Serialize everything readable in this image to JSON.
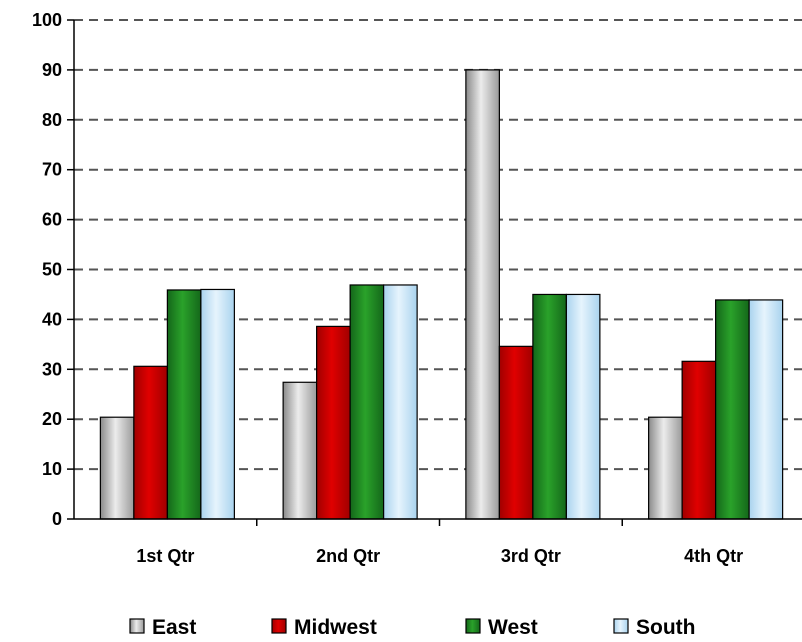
{
  "chart_data": {
    "type": "bar",
    "categories": [
      "1st Qtr",
      "2nd Qtr",
      "3rd Qtr",
      "4th Qtr"
    ],
    "series": [
      {
        "name": "East",
        "values": [
          20.4,
          27.4,
          90,
          20.4
        ],
        "color": "#c0c0c0"
      },
      {
        "name": "Midwest",
        "values": [
          30.6,
          38.6,
          34.6,
          31.6
        ],
        "color": "#c00000"
      },
      {
        "name": "West",
        "values": [
          45.9,
          46.9,
          45,
          43.9
        ],
        "color": "#1e8a1e"
      },
      {
        "name": "South",
        "values": [
          46,
          46.9,
          45,
          43.9
        ],
        "color": "#bfe1f7"
      }
    ],
    "ylim": [
      0,
      100
    ],
    "yticks": [
      0,
      10,
      20,
      30,
      40,
      50,
      60,
      70,
      80,
      90,
      100
    ],
    "grid": true,
    "legend": "bottom",
    "title": "",
    "xlabel": "",
    "ylabel": ""
  }
}
